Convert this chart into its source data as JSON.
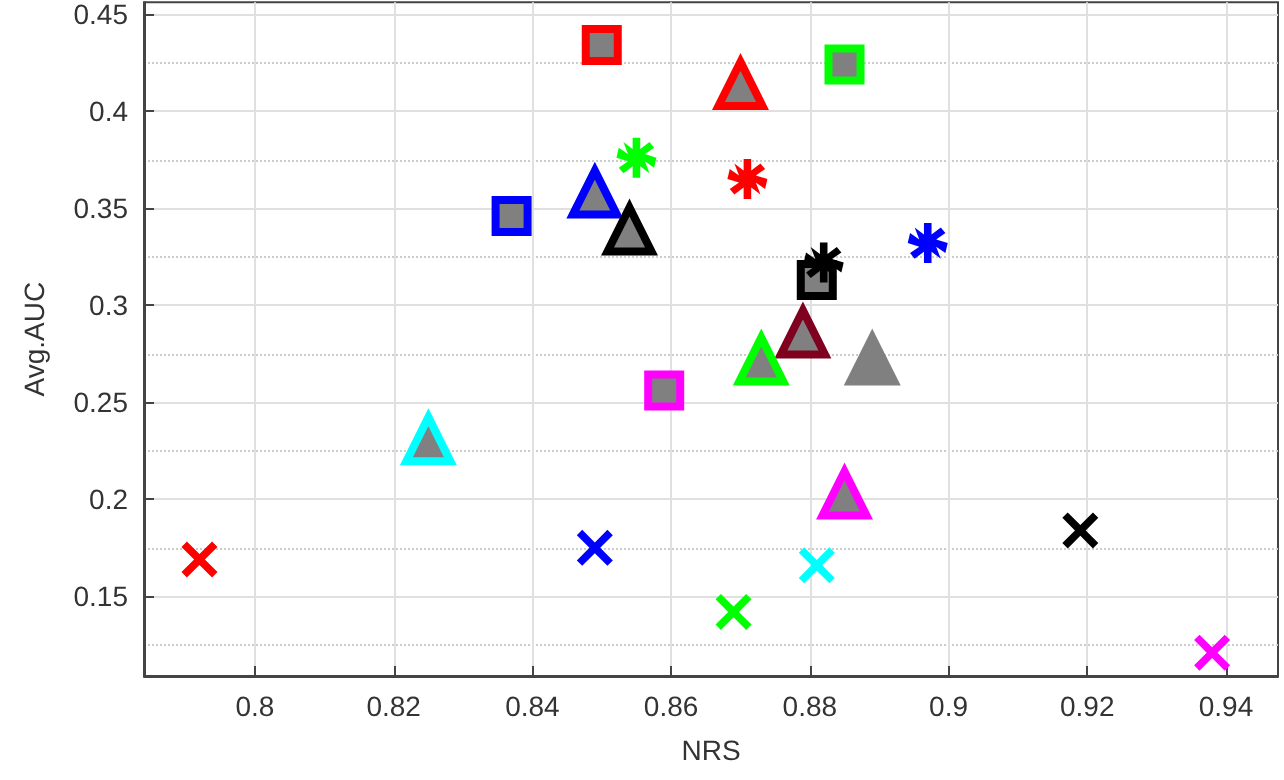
{
  "chart_data": {
    "type": "scatter",
    "xlabel": "NRS",
    "ylabel": "Avg.AUC",
    "xlim": [
      0.784,
      0.9475
    ],
    "xticks": [
      0.8,
      0.82,
      0.84,
      0.86,
      0.88,
      0.9,
      0.92,
      0.94
    ],
    "ylim": [
      0.109,
      0.456
    ],
    "yticks": [
      0.15,
      0.2,
      0.25,
      0.3,
      0.35,
      0.4,
      0.45
    ],
    "grid": true,
    "series": [
      {
        "marker": "square",
        "x": [
          0.85,
          0.837,
          0.859,
          0.885,
          0.881
        ],
        "values": [
          0.434,
          0.346,
          0.256,
          0.424,
          0.313
        ],
        "colors": [
          "#ff0000",
          "#0000ff",
          "#ff00ff",
          "#00ff00",
          "#000000"
        ]
      },
      {
        "marker": "triangle",
        "x": [
          0.87,
          0.849,
          0.854,
          0.879,
          0.873,
          0.889,
          0.825,
          0.885
        ],
        "values": [
          0.414,
          0.358,
          0.339,
          0.286,
          0.272,
          0.272,
          0.231,
          0.203
        ],
        "colors": [
          "#ff0000",
          "#0000ff",
          "#000000",
          "#800020",
          "#00ff00",
          "#808080",
          "#00ffff",
          "#ff00ff"
        ]
      },
      {
        "marker": "star",
        "x": [
          0.855,
          0.871,
          0.882,
          0.897
        ],
        "values": [
          0.376,
          0.365,
          0.322,
          0.332
        ],
        "colors": [
          "#00ff00",
          "#ff0000",
          "#000000",
          "#0000ff"
        ]
      },
      {
        "marker": "cross",
        "x": [
          0.792,
          0.849,
          0.869,
          0.881,
          0.919,
          0.938
        ],
        "values": [
          0.169,
          0.175,
          0.142,
          0.166,
          0.184,
          0.121
        ],
        "colors": [
          "#ff0000",
          "#0000ff",
          "#00ff00",
          "#00ffff",
          "#000000",
          "#ff00ff"
        ]
      }
    ]
  }
}
